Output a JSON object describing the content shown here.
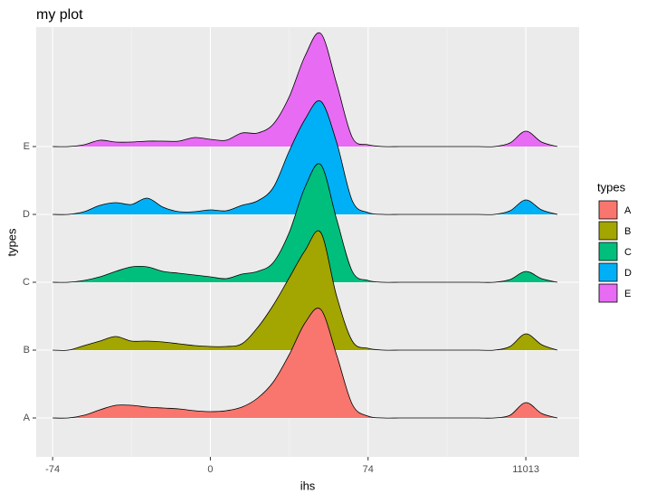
{
  "chart_data": {
    "type": "ridgeline",
    "title": "my plot",
    "x_label": "ihs",
    "y_label": "types",
    "legend_title": "types",
    "categories": [
      "A",
      "B",
      "C",
      "D",
      "E"
    ],
    "x": [
      -5,
      -4.5,
      -4,
      -3.5,
      -3,
      -2.5,
      -2,
      -1.5,
      -1,
      -0.5,
      0,
      0.5,
      1,
      1.5,
      2,
      2.5,
      3,
      3.5,
      4,
      4.5,
      5,
      5.5,
      6,
      6.5,
      7,
      7.5,
      8,
      8.5,
      9,
      9.5,
      10,
      10.5,
      11
    ],
    "series": [
      {
        "name": "A",
        "color": "#F8766D",
        "values": [
          0,
          0,
          3,
          9,
          14,
          14,
          12,
          11,
          10,
          8,
          7,
          8,
          12,
          22,
          40,
          70,
          105,
          120,
          70,
          15,
          2,
          0,
          0,
          0,
          0,
          0,
          0,
          0,
          0,
          3,
          17,
          5,
          0
        ]
      },
      {
        "name": "B",
        "color": "#A3A500",
        "values": [
          0,
          0,
          5,
          10,
          15,
          10,
          10,
          9,
          7,
          5,
          4,
          4,
          7,
          25,
          50,
          80,
          110,
          130,
          60,
          10,
          2,
          0,
          0,
          0,
          0,
          0,
          0,
          0,
          0,
          4,
          18,
          6,
          0
        ]
      },
      {
        "name": "C",
        "color": "#00BF7D",
        "values": [
          0,
          0,
          2,
          6,
          12,
          17,
          17,
          12,
          10,
          8,
          6,
          4,
          9,
          12,
          22,
          55,
          105,
          130,
          70,
          12,
          2,
          0,
          0,
          0,
          0,
          0,
          0,
          0,
          0,
          3,
          12,
          4,
          0
        ]
      },
      {
        "name": "D",
        "color": "#00B0F6",
        "values": [
          0,
          0,
          3,
          10,
          13,
          11,
          18,
          8,
          3,
          3,
          5,
          4,
          10,
          15,
          30,
          70,
          105,
          125,
          80,
          15,
          2,
          0,
          0,
          0,
          0,
          0,
          0,
          0,
          0,
          4,
          16,
          5,
          0
        ]
      },
      {
        "name": "E",
        "color": "#E76BF3",
        "values": [
          0,
          0,
          2,
          7,
          5,
          5,
          6,
          6,
          6,
          10,
          8,
          7,
          15,
          15,
          25,
          55,
          100,
          125,
          70,
          10,
          2,
          0,
          0,
          0,
          0,
          0,
          0,
          0,
          0,
          4,
          17,
          5,
          0
        ]
      }
    ],
    "xlim": [
      -5.52,
      11.69
    ],
    "xticks": [
      {
        "value": -5,
        "label": "-74"
      },
      {
        "value": 0,
        "label": "0"
      },
      {
        "value": 5,
        "label": "74"
      },
      {
        "value": 10,
        "label": "11013"
      }
    ],
    "grid": true
  }
}
